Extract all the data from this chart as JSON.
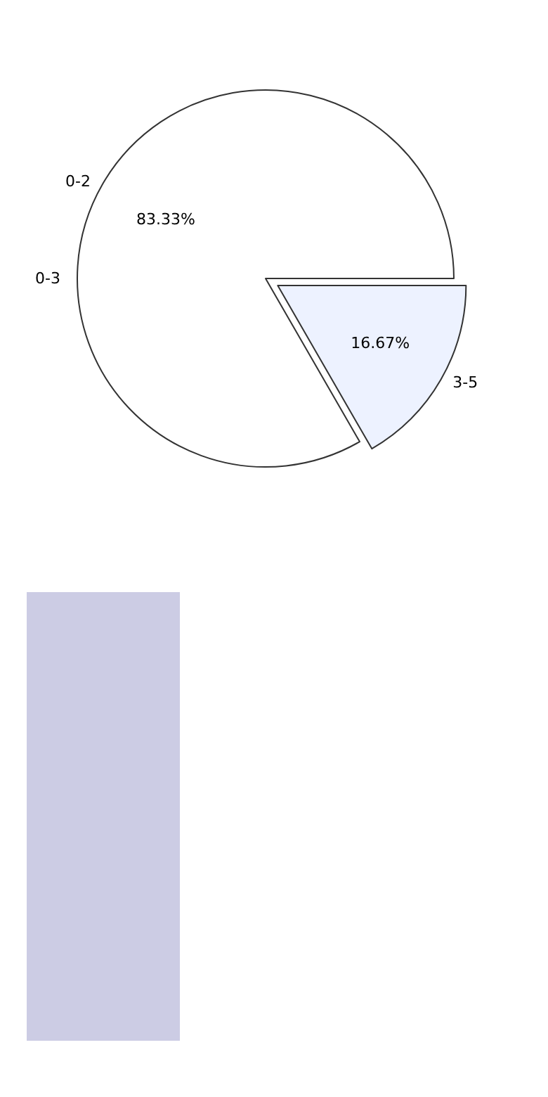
{
  "chart_data": {
    "type": "pie",
    "categories": [
      "0-2",
      "0-3",
      "3-5"
    ],
    "values": [
      83.33,
      0,
      16.67
    ],
    "colors": [
      "#ffffff",
      "#ffffff",
      "#edf2ff"
    ],
    "value_labels": [
      "83.33%",
      null,
      "16.67%"
    ],
    "legend": false
  }
}
